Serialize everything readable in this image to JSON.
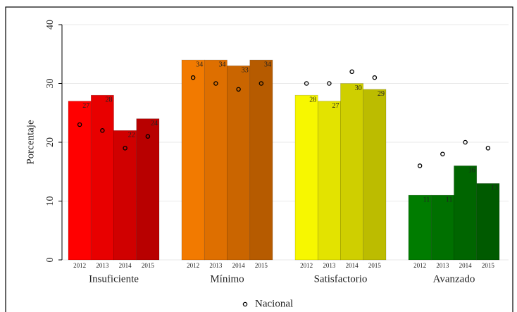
{
  "chart_data": {
    "type": "bar",
    "y_label": "Porcentaje",
    "ylim": [
      0,
      40
    ],
    "yticks": [
      0,
      10,
      20,
      30,
      40
    ],
    "grid": true,
    "subcategories": [
      "2012",
      "2013",
      "2014",
      "2015"
    ],
    "marker_series": {
      "name": "Nacional",
      "color": "#000000"
    },
    "groups": [
      {
        "name": "Insuficiente",
        "colors": [
          "#ff0000",
          "#e80000",
          "#d00000",
          "#b80000"
        ],
        "values": [
          27,
          28,
          22,
          24
        ],
        "nacional": [
          23,
          22,
          19,
          21
        ]
      },
      {
        "name": "Mínimo",
        "colors": [
          "#f27a00",
          "#de6f00",
          "#ca6500",
          "#b65b00"
        ],
        "values": [
          34,
          34,
          33,
          34
        ],
        "nacional": [
          31,
          30,
          29,
          30
        ]
      },
      {
        "name": "Satisfactorio",
        "colors": [
          "#f7f700",
          "#e3e300",
          "#cfcf00",
          "#bcbc00"
        ],
        "values": [
          28,
          27,
          30,
          29
        ],
        "nacional": [
          30,
          30,
          32,
          31
        ]
      },
      {
        "name": "Avanzado",
        "colors": [
          "#007c00",
          "#007000",
          "#006500",
          "#005a00"
        ],
        "values": [
          11,
          11,
          16,
          13
        ],
        "nacional": [
          16,
          18,
          20,
          19
        ]
      }
    ]
  }
}
